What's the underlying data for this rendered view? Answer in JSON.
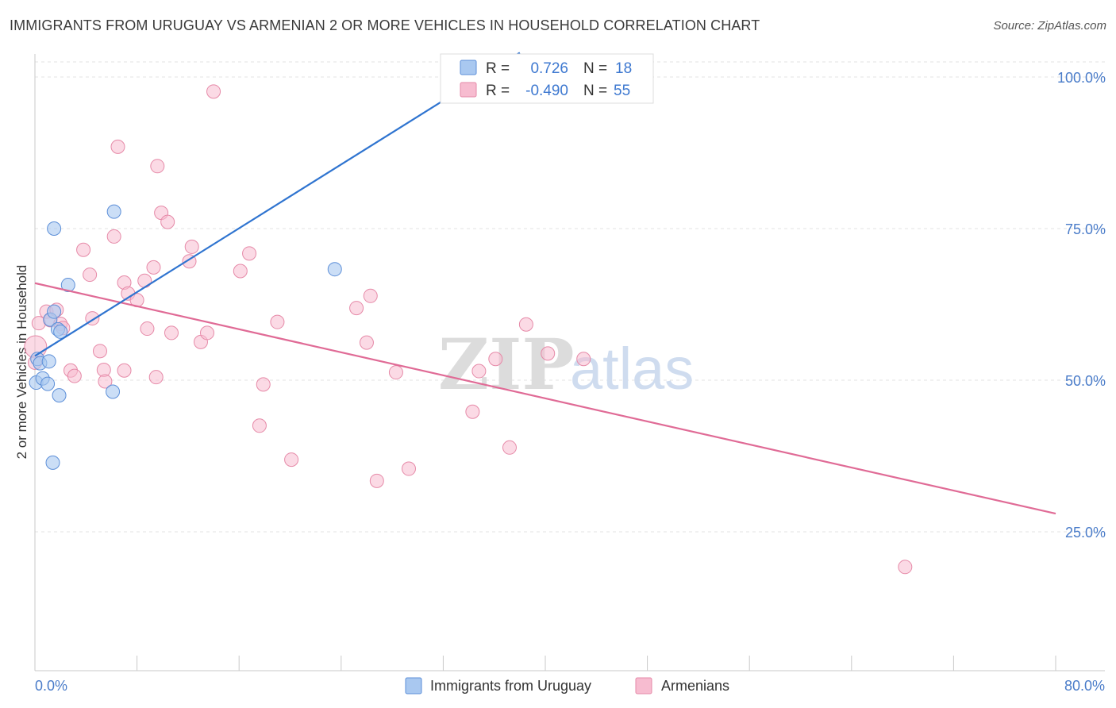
{
  "title": "IMMIGRANTS FROM URUGUAY VS ARMENIAN 2 OR MORE VEHICLES IN HOUSEHOLD CORRELATION CHART",
  "source": "Source: ZipAtlas.com",
  "watermark": {
    "zip": "ZIP",
    "atlas": "atlas"
  },
  "colors": {
    "uruguay_fill": "#a9c8f0",
    "uruguay_stroke": "#5d8fd8",
    "uruguay_line": "#2f74d0",
    "armenian_fill": "#f7bcd0",
    "armenian_stroke": "#e68aa8",
    "armenian_line": "#e06b96",
    "tick_text": "#4a7cc9",
    "grid": "#e3e3e3"
  },
  "legend": {
    "rows": [
      {
        "r_label": "R =",
        "r_value": "0.726",
        "n_label": "N =",
        "n_value": "18"
      },
      {
        "r_label": "R =",
        "r_value": "-0.490",
        "n_label": "N =",
        "n_value": "55"
      }
    ]
  },
  "chart_data": {
    "type": "scatter",
    "title": "IMMIGRANTS FROM URUGUAY VS ARMENIAN 2 OR MORE VEHICLES IN HOUSEHOLD CORRELATION CHART",
    "xlabel": "",
    "ylabel": "2 or more Vehicles in Household",
    "xlim": [
      0,
      80
    ],
    "ylim": [
      0,
      105
    ],
    "y_ticks": [
      {
        "v": 25,
        "label": "25.0%"
      },
      {
        "v": 50,
        "label": "50.0%"
      },
      {
        "v": 75,
        "label": "75.0%"
      },
      {
        "v": 100,
        "label": "100.0%"
      }
    ],
    "x_tick_labels": {
      "min": "0.0%",
      "max": "80.0%"
    },
    "x_minor_ticks": [
      0,
      8,
      16,
      24,
      32,
      40,
      48,
      56,
      64,
      72,
      80
    ],
    "grid": true,
    "series": [
      {
        "name": "Immigrants from Uruguay",
        "color": "#a9c8f0",
        "points": [
          [
            0.2,
            53.5
          ],
          [
            0.4,
            52.8
          ],
          [
            0.1,
            49.6
          ],
          [
            0.6,
            50.3
          ],
          [
            1.0,
            49.4
          ],
          [
            1.1,
            53.1
          ],
          [
            1.2,
            60.0
          ],
          [
            1.5,
            61.3
          ],
          [
            1.5,
            75.0
          ],
          [
            1.8,
            58.4
          ],
          [
            2.0,
            58.0
          ],
          [
            2.6,
            65.7
          ],
          [
            1.4,
            36.4
          ],
          [
            1.9,
            47.5
          ],
          [
            6.2,
            77.8
          ],
          [
            6.1,
            48.1
          ],
          [
            23.5,
            68.3
          ],
          [
            35.5,
            101.0
          ]
        ],
        "trend": [
          [
            0.0,
            54.0
          ],
          [
            38.0,
            104.0
          ]
        ]
      },
      {
        "name": "Armenians",
        "color": "#f7bcd0",
        "points": [
          [
            0.05,
            55.5
          ],
          [
            0.3,
            59.4
          ],
          [
            0.9,
            61.3
          ],
          [
            1.2,
            59.9
          ],
          [
            1.7,
            61.6
          ],
          [
            2.0,
            59.3
          ],
          [
            2.2,
            58.6
          ],
          [
            2.8,
            51.6
          ],
          [
            3.1,
            50.7
          ],
          [
            3.8,
            71.5
          ],
          [
            4.3,
            67.4
          ],
          [
            4.5,
            60.2
          ],
          [
            5.1,
            54.8
          ],
          [
            5.4,
            51.7
          ],
          [
            5.5,
            49.8
          ],
          [
            6.2,
            73.7
          ],
          [
            6.5,
            88.5
          ],
          [
            7.0,
            51.6
          ],
          [
            7.0,
            66.1
          ],
          [
            7.3,
            64.3
          ],
          [
            8.0,
            63.2
          ],
          [
            8.6,
            66.4
          ],
          [
            8.8,
            58.5
          ],
          [
            9.3,
            68.6
          ],
          [
            9.5,
            50.5
          ],
          [
            9.6,
            85.3
          ],
          [
            9.9,
            77.6
          ],
          [
            10.4,
            76.1
          ],
          [
            10.7,
            57.8
          ],
          [
            12.1,
            69.6
          ],
          [
            12.3,
            72.0
          ],
          [
            13.0,
            56.3
          ],
          [
            13.5,
            57.8
          ],
          [
            14.0,
            97.6
          ],
          [
            16.1,
            68.0
          ],
          [
            16.8,
            70.9
          ],
          [
            17.6,
            42.5
          ],
          [
            17.9,
            49.3
          ],
          [
            19.0,
            59.6
          ],
          [
            20.1,
            36.9
          ],
          [
            25.2,
            61.9
          ],
          [
            26.0,
            56.2
          ],
          [
            26.3,
            63.9
          ],
          [
            26.8,
            33.4
          ],
          [
            28.3,
            51.3
          ],
          [
            29.3,
            35.4
          ],
          [
            34.3,
            44.8
          ],
          [
            34.8,
            51.5
          ],
          [
            36.1,
            53.5
          ],
          [
            37.2,
            38.9
          ],
          [
            38.5,
            59.2
          ],
          [
            40.2,
            54.4
          ],
          [
            43.0,
            53.5
          ],
          [
            68.2,
            19.2
          ],
          [
            0.0,
            52.9
          ]
        ],
        "trend": [
          [
            0.0,
            66.0
          ],
          [
            80.0,
            28.0
          ]
        ]
      }
    ]
  }
}
